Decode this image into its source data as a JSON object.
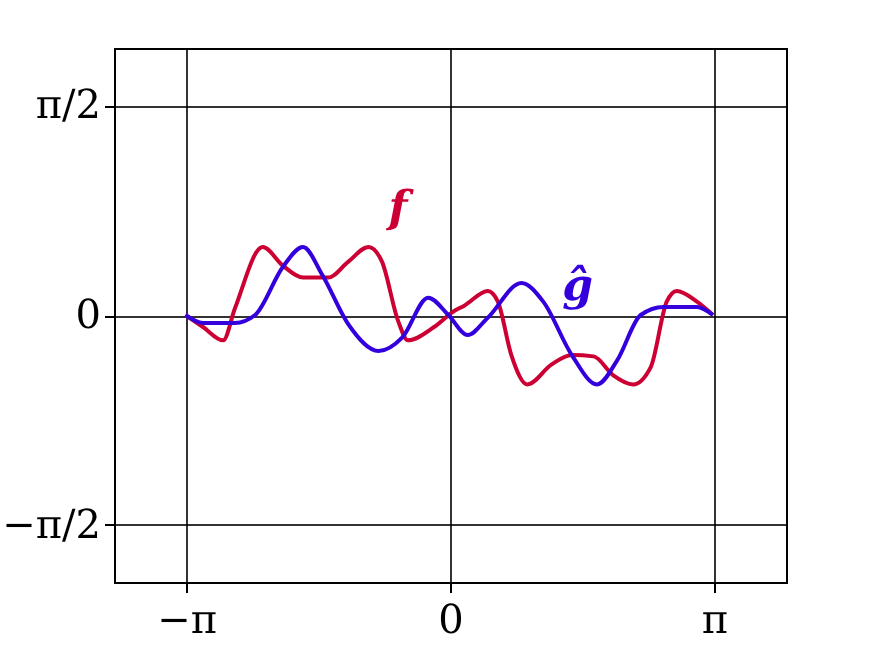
{
  "chart_data": {
    "type": "line",
    "xlim": [
      -4,
      4
    ],
    "ylim": [
      -2,
      2
    ],
    "xticks": [
      {
        "value": -3.14159,
        "label": "−π"
      },
      0,
      {
        "value": 3.14159,
        "label": "π"
      }
    ],
    "yticks": [
      {
        "value": -1.5708,
        "label": "−π/2"
      },
      0,
      {
        "value": 1.5708,
        "label": "π/2"
      }
    ],
    "grid": true,
    "series": [
      {
        "name": "f",
        "color": "#cc0033",
        "x": [
          -3.15,
          -2.94,
          -2.7,
          -2.56,
          -2.23,
          -1.99,
          -1.75,
          -1.45,
          -1.21,
          -0.97,
          -0.81,
          -0.62,
          -0.5,
          -0.19,
          0.05,
          0.17,
          0.45,
          0.57,
          0.73,
          0.92,
          1.21,
          1.45,
          1.71,
          1.94,
          2.18,
          2.39,
          2.58,
          2.7,
          2.94,
          3.13
        ],
        "values": [
          0,
          -0.09,
          -0.19,
          0.05,
          0.51,
          0.37,
          0.28,
          0.28,
          0.4,
          0.51,
          0.4,
          -0.04,
          -0.19,
          -0.09,
          0.03,
          0.07,
          0.18,
          0.1,
          -0.3,
          -0.52,
          -0.37,
          -0.3,
          -0.31,
          -0.45,
          -0.52,
          -0.39,
          0.1,
          0.18,
          0.1,
          0
        ]
      },
      {
        "name": "ĝ",
        "color": "#3300dd",
        "x": [
          -3.15,
          -2.94,
          -2.56,
          -2.32,
          -1.99,
          -1.75,
          -1.52,
          -1.21,
          -0.85,
          -0.57,
          -0.26,
          -0.02,
          0.21,
          0.45,
          0.85,
          1.11,
          1.45,
          1.75,
          1.99,
          2.27,
          2.54,
          2.94,
          3.13
        ],
        "values": [
          0,
          -0.06,
          -0.06,
          0,
          0.36,
          0.51,
          0.3,
          -0.07,
          -0.27,
          -0.17,
          0.13,
          0,
          -0.15,
          -0.02,
          0.24,
          0.1,
          -0.3,
          -0.52,
          -0.34,
          0,
          0.06,
          0.06,
          0
        ]
      }
    ]
  }
}
